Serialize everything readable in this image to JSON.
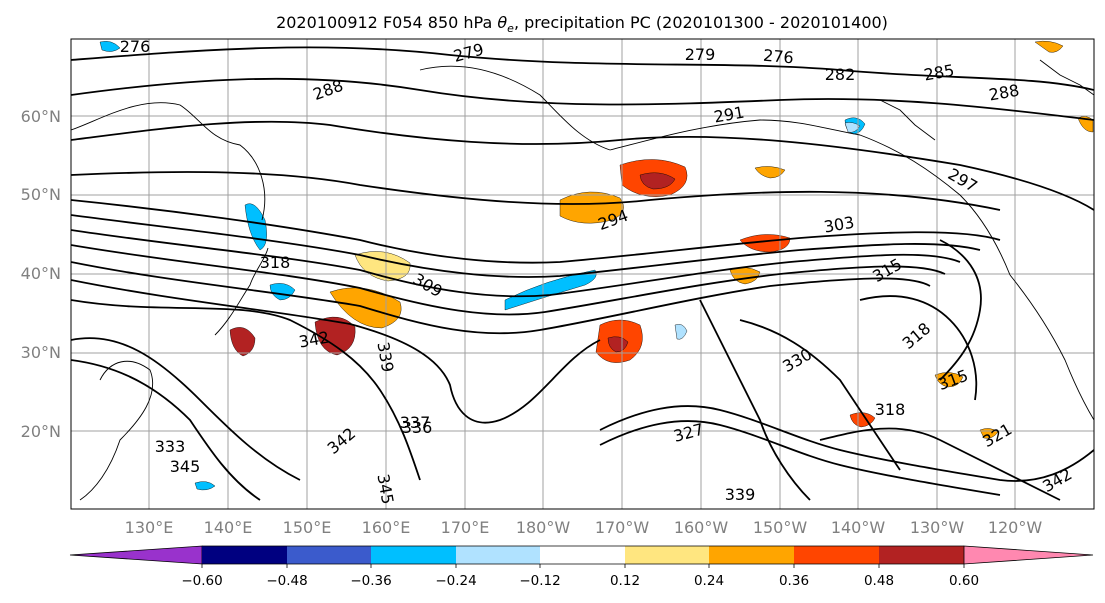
{
  "title_parts": {
    "prefix": "2020100912 F054 850 hPa ",
    "theta": "θ",
    "theta_sub": "e",
    "suffix": ", precipitation PC (2020101300 - 2020101400)"
  },
  "map": {
    "projection": "plate-carree",
    "coastline_color": "#000000",
    "grid": true,
    "latitude_labels": [
      "60°N",
      "50°N",
      "40°N",
      "30°N",
      "20°N"
    ],
    "longitude_labels": [
      "130°E",
      "140°E",
      "150°E",
      "160°E",
      "170°E",
      "180°W",
      "170°W",
      "160°W",
      "150°W",
      "140°W",
      "130°W",
      "120°W"
    ]
  },
  "chart_data": {
    "type": "contour",
    "title": "2020100912 F054 850 hPa θe, precipitation PC (2020101300 - 2020101400)",
    "contour_variable": "850 hPa θe",
    "contour_labels": [
      "276",
      "279",
      "282",
      "285",
      "288",
      "291",
      "294",
      "297",
      "303",
      "309",
      "315",
      "318",
      "321",
      "330",
      "333",
      "336",
      "337",
      "339",
      "342",
      "345"
    ],
    "fill_variable": "precipitation PC",
    "colorbar": {
      "levels": [
        "−0.60",
        "−0.48",
        "−0.36",
        "−0.24",
        "−0.12",
        "0.12",
        "0.24",
        "0.36",
        "0.48",
        "0.60"
      ],
      "extend": "both",
      "colors": [
        "#9932cc",
        "#000080",
        "#3b5bcc",
        "#00bfff",
        "#b0e2ff",
        "#ffffff",
        "#ffe680",
        "#ffa500",
        "#ff4500",
        "#b22222",
        "#ff88b0"
      ]
    }
  }
}
